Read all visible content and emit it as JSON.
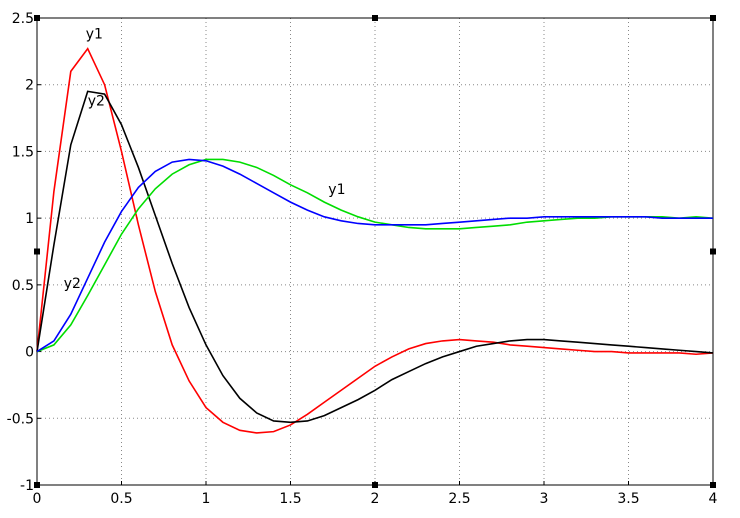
{
  "chart_data": {
    "type": "line",
    "x": [
      0,
      0.1,
      0.2,
      0.3,
      0.4,
      0.5,
      0.6,
      0.7,
      0.8,
      0.9,
      1.0,
      1.1,
      1.2,
      1.3,
      1.4,
      1.5,
      1.6,
      1.7,
      1.8,
      1.9,
      2.0,
      2.1,
      2.2,
      2.3,
      2.4,
      2.5,
      2.6,
      2.7,
      2.8,
      2.9,
      3.0,
      3.1,
      3.2,
      3.3,
      3.4,
      3.5,
      3.6,
      3.7,
      3.8,
      3.9,
      4.0
    ],
    "series": [
      {
        "name": "у1",
        "color": "#ff0000",
        "values": [
          0,
          1.2,
          2.1,
          2.27,
          2.0,
          1.5,
          0.95,
          0.45,
          0.05,
          -0.22,
          -0.42,
          -0.53,
          -0.59,
          -0.61,
          -0.6,
          -0.55,
          -0.47,
          -0.38,
          -0.29,
          -0.2,
          -0.11,
          -0.04,
          0.02,
          0.06,
          0.08,
          0.09,
          0.08,
          0.07,
          0.05,
          0.04,
          0.03,
          0.02,
          0.01,
          0.0,
          0.0,
          -0.01,
          -0.01,
          -0.01,
          -0.01,
          -0.02,
          -0.01
        ]
      },
      {
        "name": "у2",
        "color": "#000000",
        "values": [
          0,
          0.8,
          1.55,
          1.95,
          1.93,
          1.7,
          1.38,
          1.02,
          0.66,
          0.33,
          0.05,
          -0.18,
          -0.35,
          -0.46,
          -0.52,
          -0.53,
          -0.52,
          -0.48,
          -0.42,
          -0.36,
          -0.29,
          -0.21,
          -0.15,
          -0.09,
          -0.04,
          0.0,
          0.04,
          0.06,
          0.08,
          0.09,
          0.09,
          0.08,
          0.07,
          0.06,
          0.05,
          0.04,
          0.03,
          0.02,
          0.01,
          0.0,
          -0.01
        ]
      },
      {
        "name": "у1",
        "color": "#00dd00",
        "values": [
          0,
          0.05,
          0.2,
          0.42,
          0.65,
          0.88,
          1.07,
          1.22,
          1.33,
          1.4,
          1.44,
          1.44,
          1.42,
          1.38,
          1.32,
          1.25,
          1.19,
          1.12,
          1.06,
          1.01,
          0.97,
          0.95,
          0.93,
          0.92,
          0.92,
          0.92,
          0.93,
          0.94,
          0.95,
          0.97,
          0.98,
          0.99,
          1.0,
          1.0,
          1.01,
          1.01,
          1.01,
          1.01,
          1.0,
          1.01,
          1.0
        ]
      },
      {
        "name": "у2",
        "color": "#0000ff",
        "values": [
          0,
          0.08,
          0.28,
          0.55,
          0.82,
          1.05,
          1.23,
          1.35,
          1.42,
          1.44,
          1.43,
          1.39,
          1.33,
          1.26,
          1.19,
          1.12,
          1.06,
          1.01,
          0.98,
          0.96,
          0.95,
          0.95,
          0.95,
          0.95,
          0.96,
          0.97,
          0.98,
          0.99,
          1.0,
          1.0,
          1.01,
          1.01,
          1.01,
          1.01,
          1.01,
          1.01,
          1.01,
          1.0,
          1.0,
          1.0,
          1.0
        ]
      }
    ],
    "xlim": [
      0,
      4
    ],
    "xticks": [
      0,
      0.5,
      1,
      1.5,
      2,
      2.5,
      3,
      3.5,
      4
    ],
    "ylim": [
      -1,
      2.5
    ],
    "yticks": [
      -1,
      -0.5,
      0,
      0.5,
      1,
      1.5,
      2,
      2.5
    ],
    "grid": true
  }
}
